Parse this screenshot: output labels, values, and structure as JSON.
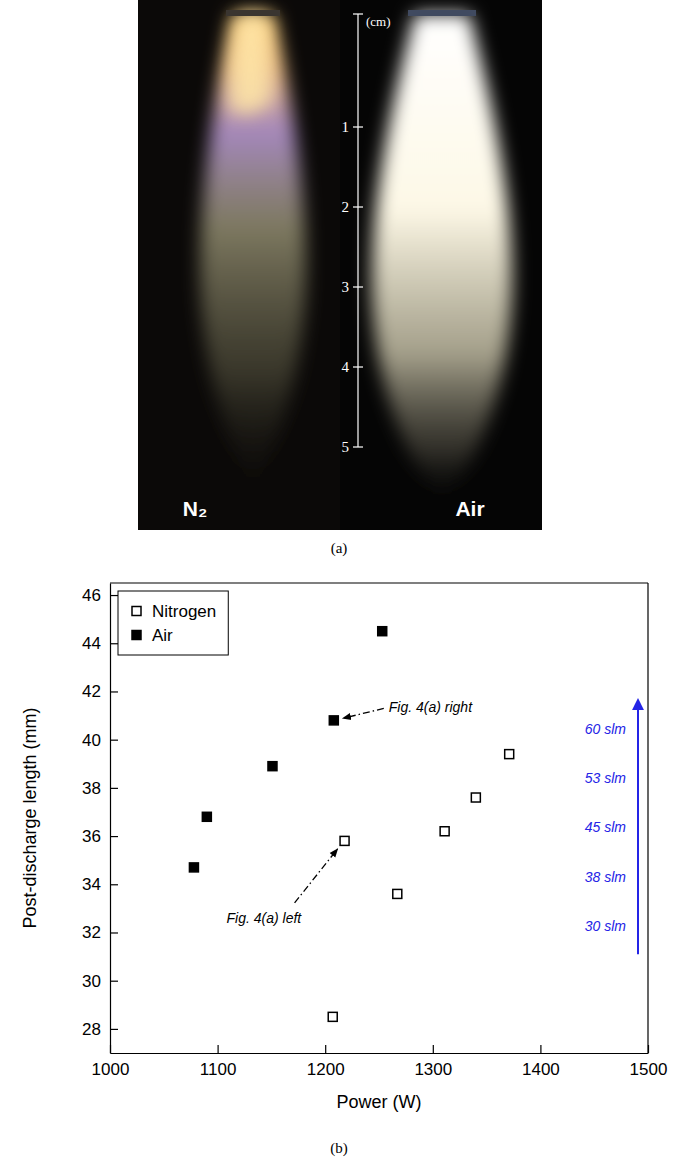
{
  "photo": {
    "scale_label": "(cm)",
    "scale_ticks": [
      1,
      2,
      3,
      4,
      5
    ],
    "panels": [
      "N₂",
      "Air"
    ],
    "caption": "(a)"
  },
  "chart_data": {
    "type": "scatter",
    "caption": "(b)",
    "xlabel": "Power (W)",
    "ylabel": "Post-discharge length (mm)",
    "xlim": [
      1000,
      1500
    ],
    "xticks": [
      1000,
      1100,
      1200,
      1300,
      1400,
      1500
    ],
    "ylim": [
      27,
      46.5
    ],
    "yticks": [
      28,
      30,
      32,
      34,
      36,
      38,
      40,
      42,
      44,
      46
    ],
    "grid": false,
    "legend": "upper left",
    "series": [
      {
        "name": "Nitrogen",
        "color": "#000000",
        "marker": "square-open",
        "x": [
          1207,
          1267,
          1218,
          1311,
          1340,
          1371
        ],
        "values": [
          28.5,
          33.6,
          35.8,
          36.2,
          37.6,
          39.4
        ]
      },
      {
        "name": "Air",
        "color": "#000000",
        "marker": "square",
        "x": [
          1078,
          1090,
          1151,
          1208,
          1253
        ],
        "values": [
          34.7,
          36.8,
          38.9,
          40.8,
          44.5
        ]
      }
    ],
    "annotations": [
      "Fig. 4(a) right",
      "Fig. 4(a) left"
    ],
    "flow_rates": {
      "labels": [
        "60 slm",
        "53 slm",
        "45 slm",
        "38 slm",
        "30 slm"
      ],
      "color": "#2424e6"
    }
  }
}
